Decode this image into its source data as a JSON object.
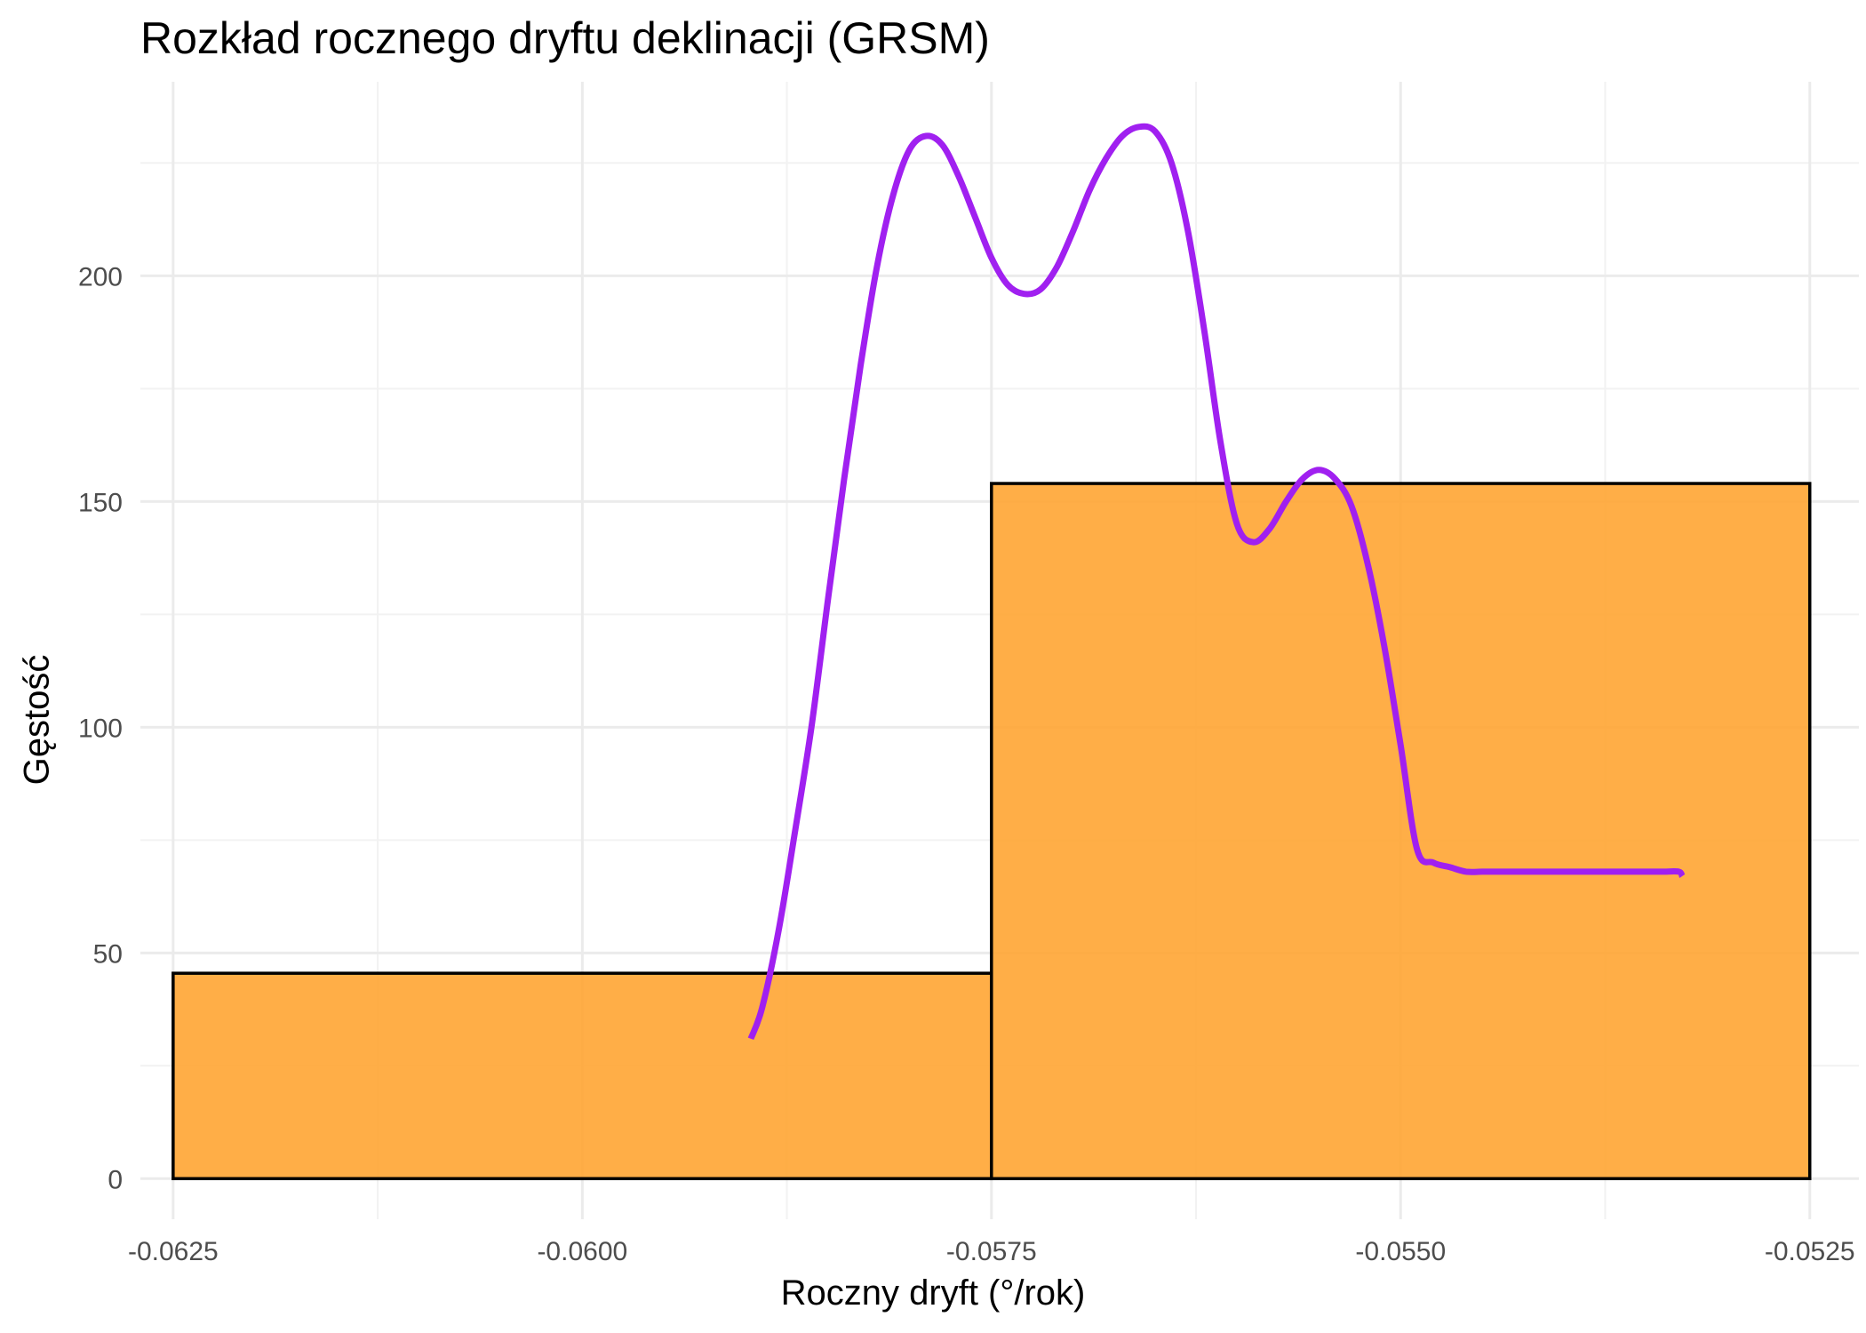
{
  "chart_data": {
    "type": "histogram",
    "title": "Rozkład rocznego dryftu deklinacji (GRSM)",
    "xlabel": "Roczny dryft (°/rok)",
    "ylabel": "Gęstość",
    "xlim": [
      -0.0627,
      -0.0522
    ],
    "ylim": [
      -9,
      243
    ],
    "x_ticks": [
      {
        "value": -0.0625,
        "label": "-0.0625"
      },
      {
        "value": -0.06,
        "label": "-0.0600"
      },
      {
        "value": -0.0575,
        "label": "-0.0575"
      },
      {
        "value": -0.055,
        "label": "-0.0550"
      },
      {
        "value": -0.0525,
        "label": "-0.0525"
      }
    ],
    "y_ticks": [
      {
        "value": 0,
        "label": "0"
      },
      {
        "value": 50,
        "label": "50"
      },
      {
        "value": 100,
        "label": "100"
      },
      {
        "value": 150,
        "label": "150"
      },
      {
        "value": 200,
        "label": "200"
      }
    ],
    "grid": true,
    "bars": [
      {
        "x0": -0.0625,
        "x1": -0.0575,
        "value": 45.5
      },
      {
        "x0": -0.0575,
        "x1": -0.0525,
        "value": 154
      }
    ],
    "density_curve": {
      "x": [
        -0.05897,
        -0.0589,
        -0.0588,
        -0.0587,
        -0.0586,
        -0.0585,
        -0.0584,
        -0.0583,
        -0.0582,
        -0.0581,
        -0.058,
        -0.0579,
        -0.0578,
        -0.0577,
        -0.0576,
        -0.0575,
        -0.0574,
        -0.0573,
        -0.0572,
        -0.0571,
        -0.057,
        -0.0569,
        -0.0568,
        -0.0567,
        -0.0566,
        -0.0565,
        -0.0564,
        -0.0563,
        -0.0562,
        -0.0561,
        -0.056,
        -0.0559,
        -0.0558,
        -0.0557,
        -0.0556,
        -0.0555,
        -0.0554,
        -0.0553,
        -0.0552,
        -0.0551,
        -0.055,
        -0.0549,
        -0.0548,
        -0.0547,
        -0.0546,
        -0.0545,
        -0.0544,
        -0.0543,
        -0.0542,
        -0.0541,
        -0.054,
        -0.0539,
        -0.0538,
        -0.0537,
        -0.0536,
        -0.0535,
        -0.0534,
        -0.0533,
        -0.05328
      ],
      "y": [
        31,
        38,
        55,
        77,
        100,
        128,
        155,
        180,
        202,
        218,
        228,
        231,
        229,
        222,
        213,
        204,
        198,
        196,
        197,
        202,
        210,
        219,
        226,
        231,
        233,
        232,
        225,
        210,
        188,
        163,
        145,
        141,
        144,
        150,
        155,
        157,
        155,
        149,
        136,
        118,
        96,
        73,
        70,
        69,
        68,
        68,
        68,
        68,
        68,
        68,
        68,
        68,
        68,
        68,
        68,
        68,
        68,
        68,
        67
      ]
    },
    "colors": {
      "bar_fill": "#ffa533",
      "bar_stroke": "#000000",
      "curve": "#a020f0",
      "grid_major": "#ebebeb",
      "grid_minor": "#f2f2f2",
      "tick_text": "#4d4d4d"
    }
  }
}
